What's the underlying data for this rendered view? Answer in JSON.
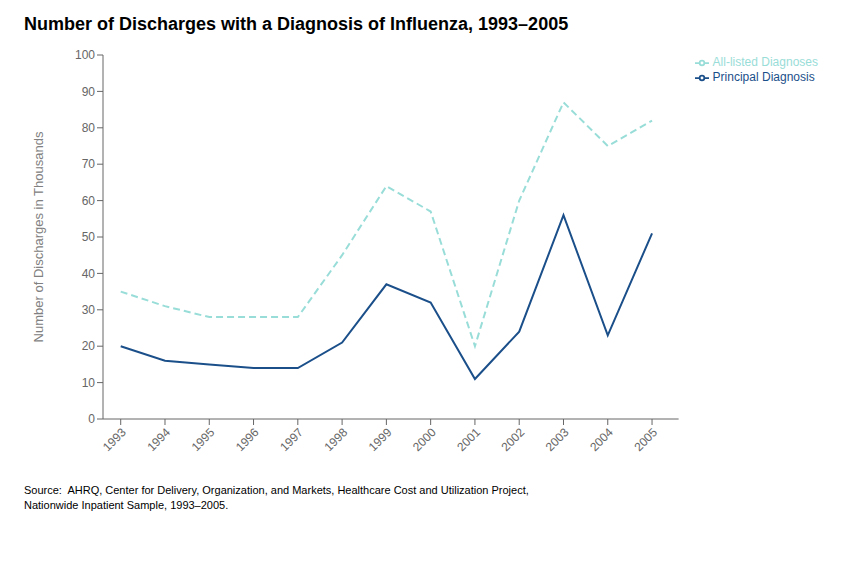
{
  "chart_data": {
    "type": "line",
    "title": "Number of Discharges with a Diagnosis of Influenza, 1993–2005",
    "y_label": "Number of Discharges in Thousands",
    "annotations": [
      "Source:  AHRQ, Center for Delivery, Organization, and Markets, Healthcare Cost and Utilization Project,\nNationwide Inpatient Sample, 1993–2005."
    ],
    "x": [
      1993,
      1994,
      1995,
      1996,
      1997,
      1998,
      1999,
      2000,
      2001,
      2002,
      2003,
      2004,
      2005
    ],
    "series": [
      {
        "name": "All-listed Diagnoses",
        "color": "#99DDD8",
        "line_style": "dashed",
        "values": [
          35,
          31,
          28,
          28,
          28,
          45,
          64,
          57,
          20,
          60,
          87,
          75,
          82
        ]
      },
      {
        "name": "Principal Diagnosis",
        "color": "#1B4F8A",
        "line_style": "solid",
        "values": [
          20,
          16,
          15,
          14,
          14,
          21,
          37,
          32,
          11,
          24,
          56,
          23,
          51
        ]
      }
    ],
    "xlim": [
      1992.6,
      2005.6
    ],
    "xticks": [
      1993,
      1994,
      1995,
      1996,
      1997,
      1998,
      1999,
      2000,
      2001,
      2002,
      2003,
      2004,
      2005
    ],
    "ylim": [
      0,
      100
    ],
    "yticks": [
      0,
      10,
      20,
      30,
      40,
      50,
      60,
      70,
      80,
      90,
      100
    ],
    "grid": false,
    "legend": "upper right"
  }
}
